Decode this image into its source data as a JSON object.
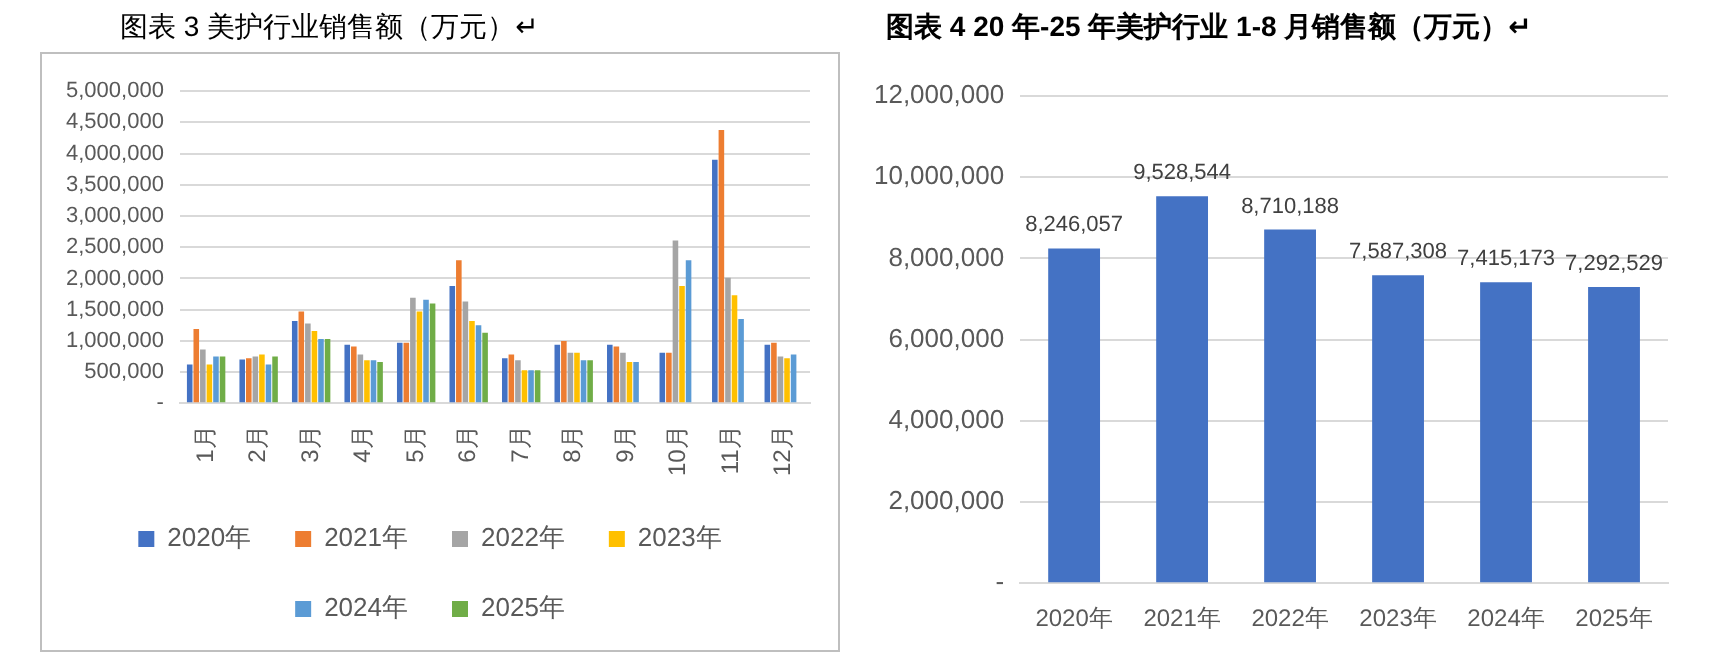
{
  "chart_data": [
    {
      "type": "bar",
      "title": "图表 3 美护行业销售额（万元）↵",
      "categories": [
        "1月",
        "2月",
        "3月",
        "4月",
        "5月",
        "6月",
        "7月",
        "8月",
        "9月",
        "10月",
        "11月",
        "12月"
      ],
      "series": [
        {
          "name": "2020年",
          "color": "#4472c4",
          "values": [
            620000,
            700000,
            1320000,
            940000,
            970000,
            1880000,
            720000,
            940000,
            940000,
            810000,
            3900000,
            940000
          ]
        },
        {
          "name": "2021年",
          "color": "#ed7d31",
          "values": [
            1190000,
            720000,
            1470000,
            910000,
            970000,
            2290000,
            780000,
            1000000,
            910000,
            810000,
            4380000,
            970000
          ]
        },
        {
          "name": "2022年",
          "color": "#a5a5a5",
          "values": [
            860000,
            750000,
            1280000,
            780000,
            1690000,
            1630000,
            690000,
            810000,
            810000,
            2610000,
            2010000,
            750000
          ]
        },
        {
          "name": "2023年",
          "color": "#ffc000",
          "values": [
            620000,
            780000,
            1160000,
            690000,
            1470000,
            1320000,
            530000,
            810000,
            660000,
            1880000,
            1730000,
            720000
          ]
        },
        {
          "name": "2024年",
          "color": "#5b9bd5",
          "values": [
            750000,
            620000,
            1030000,
            690000,
            1660000,
            1250000,
            530000,
            690000,
            660000,
            2290000,
            1350000,
            780000
          ]
        },
        {
          "name": "2025年",
          "color": "#70ad47",
          "values": [
            750000,
            750000,
            1030000,
            660000,
            1600000,
            1130000,
            530000,
            690000,
            null,
            null,
            null,
            null
          ]
        }
      ],
      "ylim": [
        0,
        5000000
      ],
      "yticks": [
        {
          "value": 0,
          "label": "-"
        },
        {
          "value": 500000,
          "label": "500,000"
        },
        {
          "value": 1000000,
          "label": "1,000,000"
        },
        {
          "value": 1500000,
          "label": "1,500,000"
        },
        {
          "value": 2000000,
          "label": "2,000,000"
        },
        {
          "value": 2500000,
          "label": "2,500,000"
        },
        {
          "value": 3000000,
          "label": "3,000,000"
        },
        {
          "value": 3500000,
          "label": "3,500,000"
        },
        {
          "value": 4000000,
          "label": "4,000,000"
        },
        {
          "value": 4500000,
          "label": "4,500,000"
        },
        {
          "value": 5000000,
          "label": "5,000,000"
        }
      ],
      "grid": "y",
      "legend": "bottom"
    },
    {
      "type": "bar",
      "title": "图表 4 20 年-25 年美护行业 1-8 月销售额（万元）↵",
      "categories": [
        "2020年",
        "2021年",
        "2022年",
        "2023年",
        "2024年",
        "2025年"
      ],
      "values": [
        8246057,
        9528544,
        8710188,
        7587308,
        7415173,
        7292529
      ],
      "color": "#4472c4",
      "value_labels": [
        "8,246,057",
        "9,528,544",
        "8,710,188",
        "7,587,308",
        "7,415,173",
        "7,292,529"
      ],
      "ylim": [
        0,
        12000000
      ],
      "yticks": [
        {
          "value": 0,
          "label": "-"
        },
        {
          "value": 2000000,
          "label": "2,000,000"
        },
        {
          "value": 4000000,
          "label": "4,000,000"
        },
        {
          "value": 6000000,
          "label": "6,000,000"
        },
        {
          "value": 8000000,
          "label": "8,000,000"
        },
        {
          "value": 10000000,
          "label": "10,000,000"
        },
        {
          "value": 12000000,
          "label": "12,000,000"
        }
      ],
      "grid": "y"
    }
  ]
}
